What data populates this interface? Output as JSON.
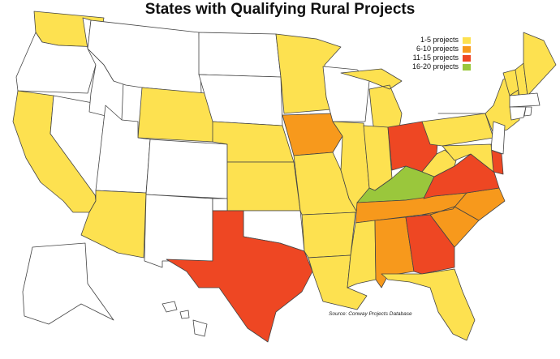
{
  "title": "States with Qualifying Rural Projects",
  "legend": [
    {
      "label": "1-5 projects",
      "color": "#fde150"
    },
    {
      "label": "6-10 projects",
      "color": "#f7991c"
    },
    {
      "label": "11-15 projects",
      "color": "#ee4723"
    },
    {
      "label": "16-20 projects",
      "color": "#9ac73c"
    }
  ],
  "source": "Source: Conway Projects Database",
  "state_categories": {
    "WA": "1-5",
    "OR": "none",
    "CA": "1-5",
    "NV": "none",
    "ID": "none",
    "MT": "none",
    "WY": "1-5",
    "UT": "none",
    "AZ": "1-5",
    "CO": "none",
    "NM": "none",
    "ND": "none",
    "SD": "none",
    "NE": "1-5",
    "KS": "1-5",
    "OK": "none",
    "TX": "11-15",
    "MN": "1-5",
    "IA": "6-10",
    "MO": "1-5",
    "AR": "1-5",
    "LA": "1-5",
    "WI": "none",
    "IL": "1-5",
    "MI": "1-5",
    "IN": "1-5",
    "OH": "11-15",
    "KY": "16-20",
    "TN": "6-10",
    "MS": "1-5",
    "AL": "6-10",
    "GA": "11-15",
    "FL": "1-5",
    "SC": "6-10",
    "NC": "6-10",
    "VA": "11-15",
    "WV": "1-5",
    "PA": "1-5",
    "NY": "1-5",
    "VT": "1-5",
    "NH": "1-5",
    "ME": "1-5",
    "MA": "none",
    "CT": "none",
    "RI": "none",
    "NJ": "none",
    "DE": "11-15",
    "MD": "1-5",
    "AK": "none",
    "HI": "none"
  },
  "colors": {
    "none": "#ffffff",
    "1-5": "#fde150",
    "6-10": "#f7991c",
    "11-15": "#ee4723",
    "16-20": "#9ac73c",
    "border": "#444444"
  }
}
